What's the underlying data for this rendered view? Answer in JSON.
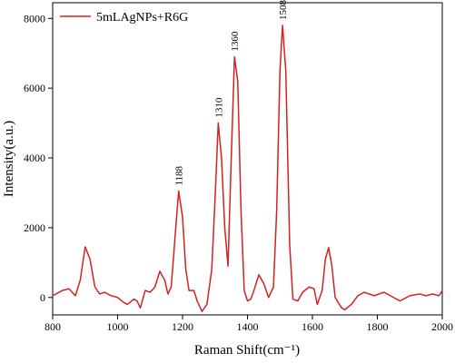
{
  "chart_data": {
    "type": "line",
    "x_label": "Raman Shift(cm⁻¹)",
    "y_label": "Intensity(a.u.)",
    "x": [
      800,
      830,
      850,
      870,
      885,
      900,
      915,
      930,
      945,
      960,
      980,
      1000,
      1020,
      1030,
      1050,
      1060,
      1070,
      1085,
      1100,
      1115,
      1130,
      1145,
      1155,
      1165,
      1175,
      1188,
      1200,
      1210,
      1220,
      1235,
      1245,
      1260,
      1275,
      1290,
      1300,
      1310,
      1320,
      1330,
      1340,
      1350,
      1360,
      1370,
      1380,
      1390,
      1400,
      1410,
      1420,
      1435,
      1450,
      1465,
      1480,
      1490,
      1500,
      1508,
      1518,
      1530,
      1540,
      1555,
      1570,
      1590,
      1605,
      1615,
      1630,
      1640,
      1650,
      1660,
      1670,
      1690,
      1700,
      1720,
      1740,
      1760,
      1790,
      1820,
      1840,
      1870,
      1900,
      1930,
      1950,
      1970,
      1990,
      2000
    ],
    "series": [
      {
        "name": "5mLAgNPs+R6G",
        "color": "#d42020",
        "values": [
          50,
          200,
          250,
          50,
          500,
          1450,
          1100,
          300,
          100,
          150,
          50,
          0,
          -150,
          -200,
          -50,
          -100,
          -300,
          200,
          150,
          300,
          750,
          500,
          100,
          300,
          1500,
          3050,
          2300,
          800,
          200,
          200,
          -100,
          -400,
          -200,
          800,
          2800,
          5000,
          4000,
          2000,
          900,
          4000,
          6900,
          6200,
          2500,
          200,
          -100,
          -50,
          200,
          650,
          400,
          0,
          300,
          2500,
          6500,
          7800,
          6500,
          1500,
          -50,
          -100,
          150,
          300,
          250,
          -200,
          200,
          1100,
          1430,
          900,
          0,
          -300,
          -350,
          -200,
          50,
          150,
          50,
          150,
          50,
          -100,
          50,
          100,
          50,
          100,
          50,
          200
        ]
      }
    ],
    "annotations": [
      {
        "text": "1188",
        "x": 1188,
        "y": 3050
      },
      {
        "text": "1310",
        "x": 1310,
        "y": 5000
      },
      {
        "text": "1360",
        "x": 1360,
        "y": 6900
      },
      {
        "text": "1508",
        "x": 1508,
        "y": 7800
      }
    ],
    "xlim": [
      800,
      2000
    ],
    "ylim": [
      -500,
      8450
    ],
    "xticks": [
      800,
      1000,
      1200,
      1400,
      1600,
      1800,
      2000
    ],
    "yticks": [
      0,
      2000,
      4000,
      6000,
      8000
    ],
    "legend": "upper left"
  }
}
